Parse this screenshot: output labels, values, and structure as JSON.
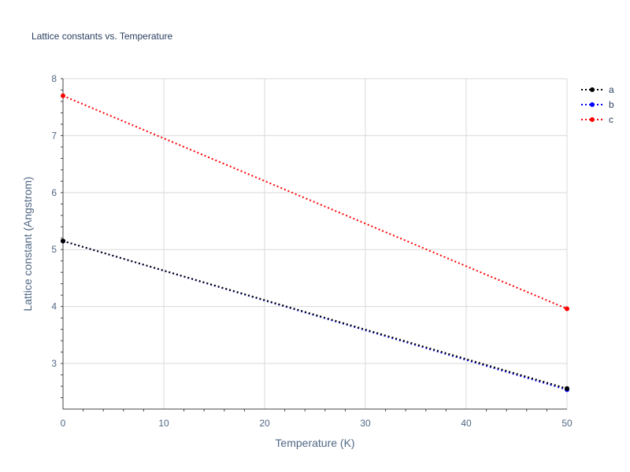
{
  "chart_data": {
    "type": "line",
    "title": "Lattice constants vs. Temperature",
    "xlabel": "Temperature (K)",
    "ylabel": "Lattice constant (Angstrom)",
    "xlim": [
      0,
      50
    ],
    "ylim": [
      2.2,
      8.0
    ],
    "xticks": [
      0,
      10,
      20,
      30,
      40,
      50
    ],
    "yticks": [
      3,
      4,
      5,
      6,
      7,
      8
    ],
    "grid": true,
    "legend_position": "top-right",
    "series": [
      {
        "name": "a",
        "color": "#000000",
        "line_style": "dotted",
        "x": [
          0,
          50
        ],
        "y": [
          5.15,
          2.56
        ]
      },
      {
        "name": "b",
        "color": "#0000ff",
        "line_style": "dotted",
        "x": [
          0,
          50
        ],
        "y": [
          5.15,
          2.54
        ]
      },
      {
        "name": "c",
        "color": "#ff0000",
        "line_style": "dotted",
        "x": [
          0,
          50
        ],
        "y": [
          7.7,
          3.96
        ]
      }
    ]
  }
}
